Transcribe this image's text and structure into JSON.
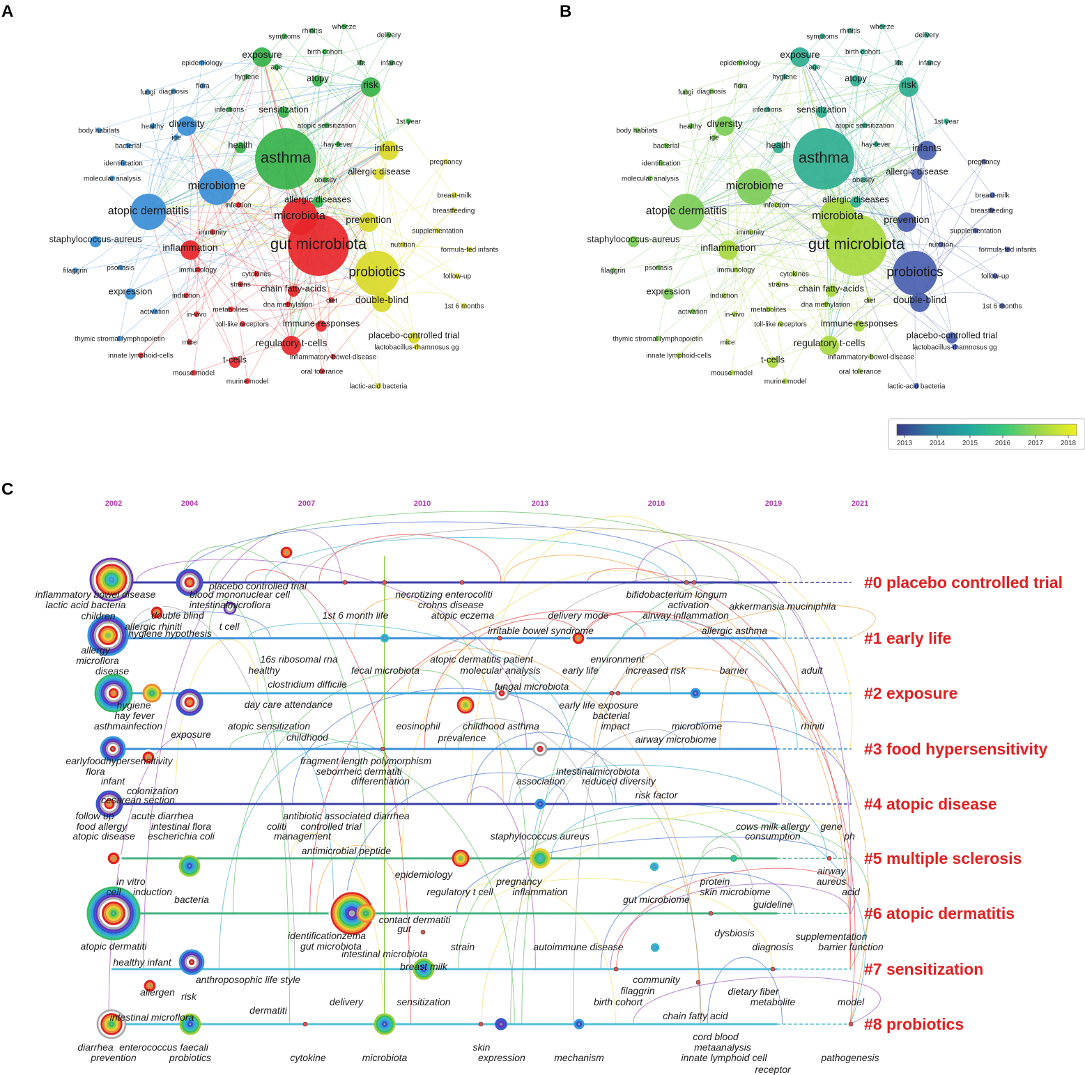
{
  "panels": {
    "a": {
      "letter": "A",
      "keywords": [
        {
          "text": "symptoms",
          "c": "green",
          "s": 1
        },
        {
          "text": "rhinitis",
          "c": "green",
          "s": 1
        },
        {
          "text": "wheeze",
          "c": "green",
          "s": 1
        },
        {
          "text": "delivery",
          "c": "green",
          "s": 1
        },
        {
          "text": "exposure",
          "c": "green",
          "s": 3
        },
        {
          "text": "birth cohort",
          "c": "green",
          "s": 1
        },
        {
          "text": "epidemiology",
          "c": "blue",
          "s": 1
        },
        {
          "text": "age",
          "c": "green",
          "s": 1
        },
        {
          "text": "life",
          "c": "green",
          "s": 1
        },
        {
          "text": "infancy",
          "c": "green",
          "s": 1
        },
        {
          "text": "hygiene",
          "c": "green",
          "s": 1
        },
        {
          "text": "atopy",
          "c": "green",
          "s": 2
        },
        {
          "text": "risk",
          "c": "green",
          "s": 3
        },
        {
          "text": "fungi",
          "c": "blue",
          "s": 1
        },
        {
          "text": "diagnosis",
          "c": "blue",
          "s": 1
        },
        {
          "text": "flora",
          "c": "blue",
          "s": 1
        },
        {
          "text": "infections",
          "c": "green",
          "s": 1
        },
        {
          "text": "sensitization",
          "c": "green",
          "s": 2
        },
        {
          "text": "diversity",
          "c": "blue",
          "s": 3
        },
        {
          "text": "body habitats",
          "c": "blue",
          "s": 1
        },
        {
          "text": "healthy",
          "c": "blue",
          "s": 1
        },
        {
          "text": "1st year",
          "c": "green",
          "s": 1
        },
        {
          "text": "ige",
          "c": "blue",
          "s": 1
        },
        {
          "text": "atopic sensitization",
          "c": "green",
          "s": 1
        },
        {
          "text": "bacterial",
          "c": "blue",
          "s": 1
        },
        {
          "text": "health",
          "c": "green",
          "s": 2
        },
        {
          "text": "hay-fever",
          "c": "green",
          "s": 1
        },
        {
          "text": "infants",
          "c": "yellow",
          "s": 3
        },
        {
          "text": "asthma",
          "c": "green",
          "s": 6
        },
        {
          "text": "identification",
          "c": "blue",
          "s": 1
        },
        {
          "text": "pregnancy",
          "c": "yellow",
          "s": 1
        },
        {
          "text": "allergic disease",
          "c": "yellow",
          "s": 2
        },
        {
          "text": "molecular analysis",
          "c": "blue",
          "s": 1
        },
        {
          "text": "obesity",
          "c": "green",
          "s": 1
        },
        {
          "text": "microbiome",
          "c": "blue",
          "s": 4
        },
        {
          "text": "breast-milk",
          "c": "yellow",
          "s": 1
        },
        {
          "text": "allergic diseases",
          "c": "green",
          "s": 2
        },
        {
          "text": "infection",
          "c": "red",
          "s": 1
        },
        {
          "text": "atopic dermatitis",
          "c": "blue",
          "s": 4
        },
        {
          "text": "breastfeeding",
          "c": "yellow",
          "s": 1
        },
        {
          "text": "microbiota",
          "c": "red",
          "s": 4
        },
        {
          "text": "prevention",
          "c": "yellow",
          "s": 3
        },
        {
          "text": "immunity",
          "c": "red",
          "s": 1
        },
        {
          "text": "supplementation",
          "c": "yellow",
          "s": 1
        },
        {
          "text": "staphylococcus-aureus",
          "c": "blue",
          "s": 2
        },
        {
          "text": "gut microbiota",
          "c": "red",
          "s": 6
        },
        {
          "text": "inflammation",
          "c": "red",
          "s": 3
        },
        {
          "text": "nutrition",
          "c": "yellow",
          "s": 1
        },
        {
          "text": "formula-fed infants",
          "c": "yellow",
          "s": 1
        },
        {
          "text": "filaggrin",
          "c": "blue",
          "s": 1
        },
        {
          "text": "psoriasis",
          "c": "blue",
          "s": 1
        },
        {
          "text": "immunology",
          "c": "red",
          "s": 1
        },
        {
          "text": "cytokines",
          "c": "red",
          "s": 1
        },
        {
          "text": "probiotics",
          "c": "yellow",
          "s": 5
        },
        {
          "text": "strains",
          "c": "red",
          "s": 1
        },
        {
          "text": "follow-up",
          "c": "yellow",
          "s": 1
        },
        {
          "text": "expression",
          "c": "blue",
          "s": 2
        },
        {
          "text": "chain fatty-acids",
          "c": "red",
          "s": 2
        },
        {
          "text": "induction",
          "c": "red",
          "s": 1
        },
        {
          "text": "double-blind",
          "c": "yellow",
          "s": 3
        },
        {
          "text": "diet",
          "c": "red",
          "s": 1
        },
        {
          "text": "metabolites",
          "c": "red",
          "s": 1
        },
        {
          "text": "dna methylation",
          "c": "red",
          "s": 1
        },
        {
          "text": "activation",
          "c": "blue",
          "s": 1
        },
        {
          "text": "in-vivo",
          "c": "red",
          "s": 1
        },
        {
          "text": "1st 6 months",
          "c": "yellow",
          "s": 1
        },
        {
          "text": "immune-responses",
          "c": "red",
          "s": 2
        },
        {
          "text": "toll-like receptors",
          "c": "red",
          "s": 1
        },
        {
          "text": "placebo-controlled trial",
          "c": "yellow",
          "s": 2
        },
        {
          "text": "thymic stromal lymphopoietin",
          "c": "blue",
          "s": 1
        },
        {
          "text": "mice",
          "c": "red",
          "s": 1
        },
        {
          "text": "regulatory t-cells",
          "c": "red",
          "s": 3
        },
        {
          "text": "lactobacillus-rhamnosus gg",
          "c": "yellow",
          "s": 1
        },
        {
          "text": "innate lymphoid-cells",
          "c": "red",
          "s": 1
        },
        {
          "text": "inflammatory-bowel-disease",
          "c": "red",
          "s": 1
        },
        {
          "text": "t-cells",
          "c": "red",
          "s": 2
        },
        {
          "text": "mouse model",
          "c": "red",
          "s": 1
        },
        {
          "text": "oral tolerance",
          "c": "red",
          "s": 1
        },
        {
          "text": "murine model",
          "c": "red",
          "s": 1
        },
        {
          "text": "lactic-acid bacteria",
          "c": "yellow",
          "s": 1
        }
      ]
    },
    "b": {
      "letter": "B",
      "colorbar": {
        "ticks": [
          "2013",
          "2014",
          "2015",
          "2016",
          "2017",
          "2018"
        ],
        "stops": [
          "#3a3a8c",
          "#2a7fa0",
          "#20a8a0",
          "#3cc87a",
          "#a0d848",
          "#f0f020"
        ]
      }
    },
    "c": {
      "letter": "C",
      "years": [
        "2002",
        "2004",
        "2007",
        "2010",
        "2013",
        "2016",
        "2019",
        "2021"
      ],
      "clusters": [
        {
          "label": "#0 placebo controlled trial",
          "color": "#3b3ea8"
        },
        {
          "label": "#1 early life",
          "color": "#3a8fd8"
        },
        {
          "label": "#2 exposure",
          "color": "#40a8d8"
        },
        {
          "label": "#3 food hypersensitivity",
          "color": "#3a8fd8"
        },
        {
          "label": "#4 atopic disease",
          "color": "#3b3ea8"
        },
        {
          "label": "#5 multiple sclerosis",
          "color": "#44b080"
        },
        {
          "label": "#6 atopic dermatitis",
          "color": "#44b080"
        },
        {
          "label": "#7 sensitization",
          "color": "#50c0d8"
        },
        {
          "label": "#8 probiotics",
          "color": "#50c0d8"
        }
      ],
      "labels": [
        "inflammatory bowel disease",
        "placebo controlled trial",
        "necrotizing enterocoliti",
        "bifidobacterium longum",
        "lactic acid bacteria",
        "blood mononuclear cell",
        "crohns disease",
        "activation",
        "akkermansia muciniphila",
        "intestinalmicroflora",
        "children",
        "double blind",
        "1st 6 month life",
        "atopic eczema",
        "delivery mode",
        "airway inflammation",
        "allergic rhiniti",
        "t cell",
        "hygiene hypothesis",
        "irritable bowel syndrome",
        "allergic asthma",
        "allergy",
        "microflora",
        "16s ribosomal rna",
        "atopic dermatitis patient",
        "environment",
        "disease",
        "healthy",
        "fecal microbiota",
        "molecular analysis",
        "early life",
        "increased risk",
        "barrier",
        "adult",
        "clostridium difficile",
        "fungal microbiota",
        "hygiene",
        "day care attendance",
        "early life exposure",
        "hay fever",
        "bacterial",
        "asthmainfection",
        "atopic sensitization",
        "eosinophil",
        "childhood asthma",
        "impact",
        "microbiome",
        "rhiniti",
        "exposure",
        "childhood",
        "prevalence",
        "airway microbiome",
        "earlyfoodhypersensitivity",
        "fragment length polymorphism",
        "flora",
        "seborrheic dermatiti",
        "intestinalmicrobiota",
        "infant",
        "differentiation",
        "association",
        "reduced diversity",
        "colonization",
        "cesarean section",
        "risk factor",
        "follow up",
        "acute diarrhea",
        "antibiotic associated diarrhea",
        "food allergy",
        "intestinal flora",
        "coliti",
        "controlled trial",
        "cows milk allergy",
        "gene",
        "atopic disease",
        "escherichia coli",
        "management",
        "staphylococcus aureus",
        "consumption",
        "ph",
        "antimicrobial peptide",
        "epidemiology",
        "pregnancy",
        "airway",
        "in vitro",
        "protein",
        "aureus",
        "cell",
        "induction",
        "regulatory t cell",
        "inflammation",
        "skin microbiome",
        "acid",
        "bacteria",
        "gut microbiome",
        "guideline",
        "contact dermatiti",
        "atopic dermatiti",
        "identificationzema",
        "gut",
        "dysbiosis",
        "supplementation",
        "gut microbiota",
        "strain",
        "autoimmune disease",
        "diagnosis",
        "barrier function",
        "intestinal microbiota",
        "healthy infant",
        "breast milk",
        "anthroposophic life style",
        "community",
        "allergen",
        "risk",
        "filaggrin",
        "dietary fiber",
        "dermatiti",
        "delivery",
        "sensitization",
        "birth cohort",
        "metabolite",
        "model",
        "intestinal microflora",
        "chain fatty acid",
        "cord blood",
        "diarrhea",
        "enterococcus faecali",
        "metaanalysis",
        "prevention",
        "probiotics",
        "cytokine",
        "microbiota",
        "skin",
        "expression",
        "mechanism",
        "innate lymphoid cell",
        "pathogenesis",
        "receptor"
      ]
    }
  },
  "colors": {
    "red": "#e8262a",
    "green": "#36b24a",
    "blue": "#3a8ed6",
    "yellow": "#d9d92a"
  }
}
